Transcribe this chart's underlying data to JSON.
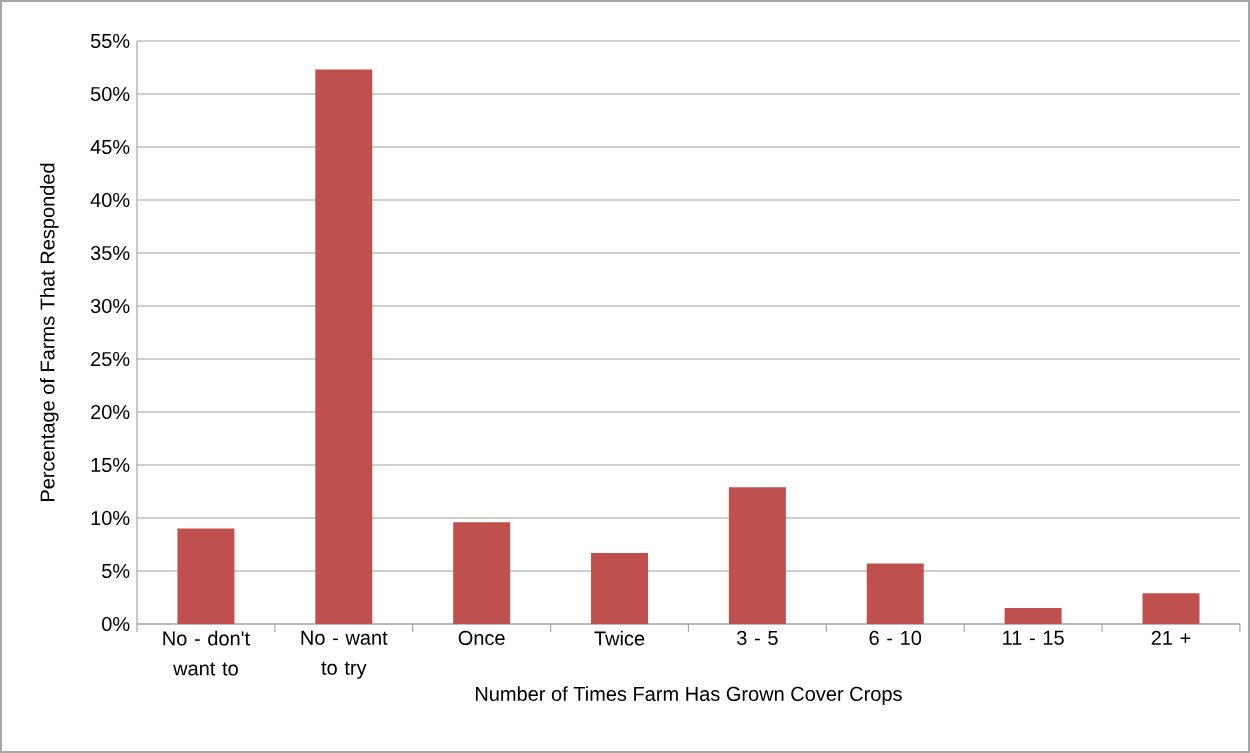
{
  "chart_data": {
    "type": "bar",
    "xlabel": "Number of Times Farm Has Grown Cover Crops",
    "ylabel": "Percentage of Farms That Responded",
    "categories": [
      "No - don't want to",
      "No - want to try",
      "Once",
      "Twice",
      "3 - 5",
      "6 - 10",
      "11 - 15",
      "21 +"
    ],
    "values": [
      9.0,
      52.3,
      9.6,
      6.7,
      12.9,
      5.7,
      1.5,
      2.9
    ],
    "color": "#c0504d",
    "ylim": [
      0,
      55
    ],
    "yticks": [
      {
        "value": 0,
        "label": "0%"
      },
      {
        "value": 5,
        "label": "5%"
      },
      {
        "value": 10,
        "label": "10%"
      },
      {
        "value": 15,
        "label": "15%"
      },
      {
        "value": 20,
        "label": "20%"
      },
      {
        "value": 25,
        "label": "25%"
      },
      {
        "value": 30,
        "label": "30%"
      },
      {
        "value": 35,
        "label": "35%"
      },
      {
        "value": 40,
        "label": "40%"
      },
      {
        "value": 45,
        "label": "45%"
      },
      {
        "value": 50,
        "label": "50%"
      },
      {
        "value": 55,
        "label": "55%"
      }
    ],
    "grid": "y"
  }
}
